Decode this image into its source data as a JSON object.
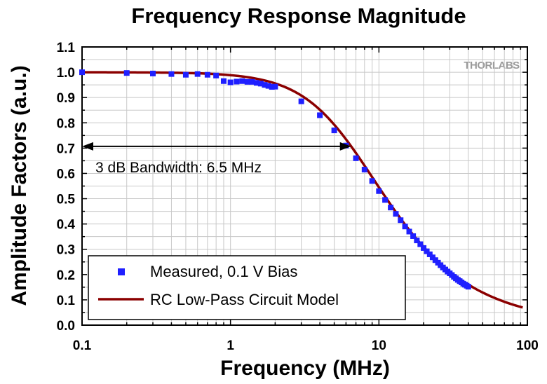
{
  "chart_data": {
    "type": "line",
    "title": "Frequency Response Magnitude",
    "xlabel": "Frequency (MHz)",
    "ylabel": "Amplitude Factors (a.u.)",
    "xscale": "log",
    "xlim": [
      0.1,
      100
    ],
    "ylim": [
      0.0,
      1.1
    ],
    "x_ticks": [
      0.1,
      1,
      10,
      100
    ],
    "x_tick_labels": [
      "0.1",
      "1",
      "10",
      "100"
    ],
    "y_ticks": [
      0.0,
      0.1,
      0.2,
      0.3,
      0.4,
      0.5,
      0.6,
      0.7,
      0.8,
      0.9,
      1.0,
      1.1
    ],
    "y_tick_labels": [
      "0.0",
      "0.1",
      "0.2",
      "0.3",
      "0.4",
      "0.5",
      "0.6",
      "0.7",
      "0.8",
      "0.9",
      "1.0",
      "1.1"
    ],
    "grid": true,
    "series": [
      {
        "name": "Measured, 0.1 V Bias",
        "kind": "scatter",
        "marker": "square",
        "color": "#1f1fff",
        "x": [
          0.1,
          0.2,
          0.3,
          0.4,
          0.5,
          0.6,
          0.7,
          0.8,
          0.9,
          1.0,
          1.1,
          1.2,
          1.3,
          1.4,
          1.5,
          1.6,
          1.7,
          1.8,
          1.9,
          2.0,
          3.0,
          4.0,
          5.0,
          6.0,
          7.0,
          8.0,
          9.0,
          10.0,
          11.0,
          12.0,
          13.0,
          14.0,
          15.0,
          16.0,
          17.0,
          18.0,
          19.0,
          20.0,
          21.0,
          22.0,
          23.0,
          24.0,
          25.0,
          26.0,
          27.0,
          28.0,
          29.0,
          30.0,
          31.0,
          32.0,
          33.0,
          34.0,
          35.0,
          36.0,
          37.0,
          38.0,
          39.0,
          40.0
        ],
        "y": [
          1.0,
          0.997,
          0.995,
          0.993,
          0.99,
          0.993,
          0.99,
          0.987,
          0.965,
          0.96,
          0.963,
          0.965,
          0.962,
          0.962,
          0.958,
          0.955,
          0.95,
          0.946,
          0.942,
          0.943,
          0.885,
          0.83,
          0.77,
          0.71,
          0.66,
          0.615,
          0.57,
          0.53,
          0.495,
          0.465,
          0.44,
          0.415,
          0.39,
          0.37,
          0.352,
          0.335,
          0.32,
          0.305,
          0.292,
          0.28,
          0.268,
          0.257,
          0.247,
          0.237,
          0.228,
          0.22,
          0.212,
          0.205,
          0.198,
          0.191,
          0.185,
          0.179,
          0.174,
          0.169,
          0.164,
          0.16,
          0.156,
          0.152
        ]
      },
      {
        "name": "RC Low-Pass Circuit Model",
        "kind": "line",
        "color": "#8b0000",
        "model": "1/sqrt(1+(f/fc)^2)",
        "fc": 6.5,
        "x_range": [
          0.1,
          93
        ]
      }
    ],
    "annotations": [
      {
        "text": "3 dB Bandwidth: 6.5 MHz",
        "arrow_from_x": 0.1,
        "arrow_to_x": 6.5,
        "arrow_y": 0.707
      }
    ],
    "legend_position": "bottom-left"
  },
  "brand_logo": "THORLABS"
}
